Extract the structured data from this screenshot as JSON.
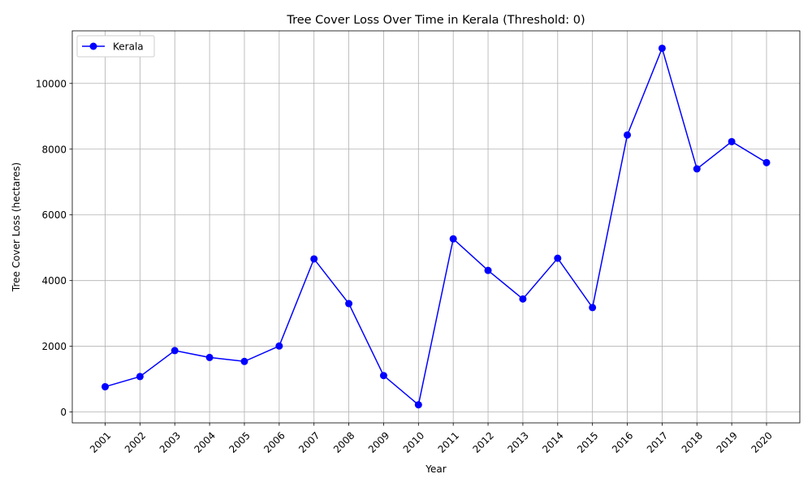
{
  "chart_data": {
    "type": "line",
    "title": "Tree Cover Loss Over Time in Kerala (Threshold: 0)",
    "xlabel": "Year",
    "ylabel": "Tree Cover Loss (hectares)",
    "categories": [
      "2001",
      "2002",
      "2003",
      "2004",
      "2005",
      "2006",
      "2007",
      "2008",
      "2009",
      "2010",
      "2011",
      "2012",
      "2013",
      "2014",
      "2015",
      "2016",
      "2017",
      "2018",
      "2019",
      "2020"
    ],
    "series": [
      {
        "name": "Kerala",
        "color": "#0000ff",
        "marker": "circle",
        "values": [
          770,
          1080,
          1870,
          1660,
          1540,
          2010,
          4660,
          3300,
          1110,
          220,
          5270,
          4310,
          3440,
          4680,
          3180,
          8430,
          11070,
          7400,
          8230,
          7590
        ]
      }
    ],
    "ylim": [
      -330,
      11600
    ],
    "yticks": [
      0,
      2000,
      4000,
      6000,
      8000,
      10000
    ],
    "grid": true,
    "legend_position": "top-left"
  }
}
